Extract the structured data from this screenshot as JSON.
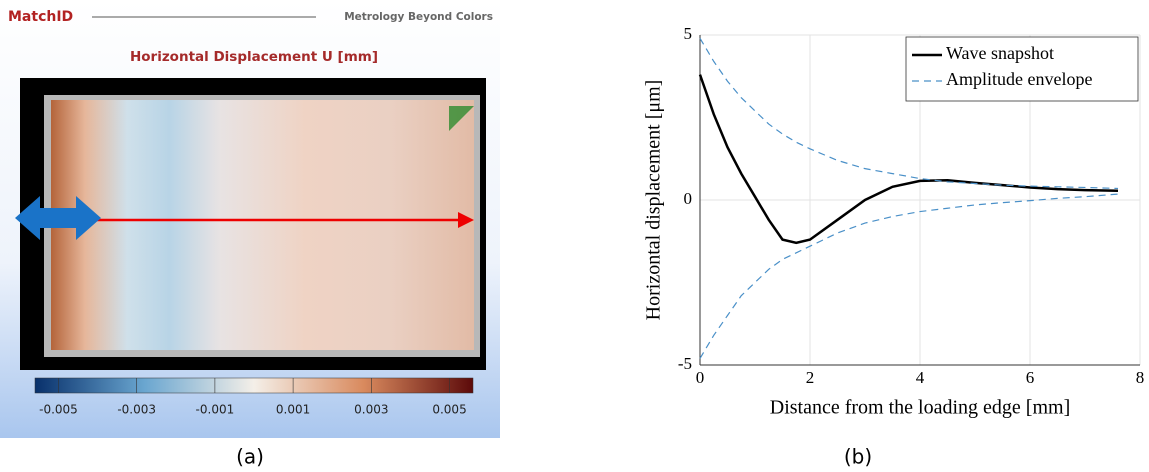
{
  "panel_a": {
    "brand": "MatchID",
    "tagline": "Metrology Beyond Colors",
    "title": "Horizontal Displacement U [mm]",
    "colorbar_lim": [
      -0.0056,
      0.0056
    ],
    "colorbar_ticks": [
      -0.005,
      -0.003,
      -0.001,
      0.001,
      0.003,
      0.005
    ],
    "caption": "(a)"
  },
  "chart_data": {
    "type": "line",
    "caption": "(b)",
    "xlabel": "Distance from the loading edge [mm]",
    "ylabel": "Horizontal displacement [μm]",
    "xlim": [
      0,
      8
    ],
    "xticks": [
      0,
      2,
      4,
      6,
      8
    ],
    "ylim": [
      -5,
      5
    ],
    "yticks": [
      -5,
      0,
      5
    ],
    "grid": true,
    "legend": "upper right",
    "x": [
      0,
      0.25,
      0.5,
      0.75,
      1,
      1.25,
      1.5,
      1.75,
      2,
      2.5,
      3,
      3.5,
      4,
      4.5,
      5,
      5.5,
      6,
      6.5,
      7,
      7.6
    ],
    "series": [
      {
        "name": "Wave snapshot",
        "color": "#000000",
        "dash": false,
        "values": [
          3.8,
          2.6,
          1.6,
          0.8,
          0.1,
          -0.6,
          -1.2,
          -1.3,
          -1.2,
          -0.6,
          0,
          0.4,
          0.58,
          0.6,
          0.52,
          0.45,
          0.38,
          0.33,
          0.3,
          0.28
        ]
      },
      {
        "name": "Amplitude envelope",
        "color": "#4a90c8",
        "dash": true,
        "values": [
          4.9,
          4.2,
          3.6,
          3.1,
          2.7,
          2.3,
          2.0,
          1.75,
          1.55,
          1.2,
          0.95,
          0.8,
          0.65,
          0.55,
          0.5,
          0.45,
          0.42,
          0.4,
          0.38,
          0.35
        ]
      },
      {
        "color": "#4a90c8",
        "dash": true,
        "values": [
          -4.8,
          -4.1,
          -3.5,
          -2.9,
          -2.5,
          -2.1,
          -1.8,
          -1.6,
          -1.4,
          -1.0,
          -0.7,
          -0.5,
          -0.35,
          -0.25,
          -0.15,
          -0.08,
          -0.02,
          0.05,
          0.1,
          0.18
        ]
      }
    ]
  }
}
